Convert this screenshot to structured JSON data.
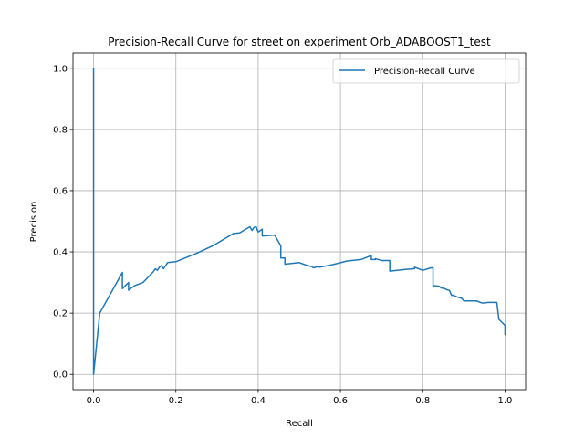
{
  "chart_data": {
    "type": "line",
    "title": "Precision-Recall Curve for street on experiment Orb_ADABOOST1_test",
    "xlabel": "Recall",
    "ylabel": "Precision",
    "xlim": [
      -0.05,
      1.05
    ],
    "ylim": [
      -0.05,
      1.05
    ],
    "xticks": [
      "0.0",
      "0.2",
      "0.4",
      "0.6",
      "0.8",
      "1.0"
    ],
    "yticks": [
      "0.0",
      "0.2",
      "0.4",
      "0.6",
      "0.8",
      "1.0"
    ],
    "grid": true,
    "legend_position": "top-right",
    "series": [
      {
        "name": "Precision-Recall Curve",
        "color": "#1f77b4",
        "x": [
          0.0,
          0.0,
          0.0,
          0.015,
          0.07,
          0.07,
          0.085,
          0.085,
          0.1,
          0.11,
          0.12,
          0.145,
          0.15,
          0.155,
          0.16,
          0.165,
          0.17,
          0.175,
          0.18,
          0.2,
          0.25,
          0.29,
          0.34,
          0.355,
          0.38,
          0.385,
          0.39,
          0.395,
          0.4,
          0.41,
          0.41,
          0.44,
          0.455,
          0.455,
          0.465,
          0.465,
          0.5,
          0.52,
          0.53,
          0.535,
          0.545,
          0.55,
          0.58,
          0.61,
          0.615,
          0.65,
          0.675,
          0.675,
          0.685,
          0.685,
          0.7,
          0.705,
          0.72,
          0.72,
          0.76,
          0.78,
          0.78,
          0.79,
          0.8,
          0.82,
          0.825,
          0.825,
          0.84,
          0.845,
          0.85,
          0.86,
          0.865,
          0.87,
          0.875,
          0.885,
          0.895,
          0.9,
          0.93,
          0.935,
          0.94,
          0.945,
          0.96,
          0.98,
          0.985,
          1.0,
          1.0
        ],
        "y": [
          1.0,
          0.0,
          0.0,
          0.2,
          0.333,
          0.28,
          0.3,
          0.275,
          0.29,
          0.295,
          0.3,
          0.335,
          0.345,
          0.34,
          0.35,
          0.355,
          0.345,
          0.355,
          0.365,
          0.368,
          0.395,
          0.42,
          0.46,
          0.462,
          0.482,
          0.47,
          0.48,
          0.482,
          0.465,
          0.474,
          0.452,
          0.455,
          0.42,
          0.38,
          0.38,
          0.36,
          0.365,
          0.355,
          0.352,
          0.348,
          0.352,
          0.35,
          0.358,
          0.368,
          0.37,
          0.375,
          0.388,
          0.375,
          0.375,
          0.378,
          0.372,
          0.372,
          0.372,
          0.337,
          0.343,
          0.345,
          0.35,
          0.345,
          0.34,
          0.348,
          0.348,
          0.29,
          0.288,
          0.282,
          0.282,
          0.276,
          0.274,
          0.258,
          0.258,
          0.252,
          0.248,
          0.24,
          0.24,
          0.238,
          0.235,
          0.233,
          0.235,
          0.235,
          0.18,
          0.16,
          0.128
        ]
      }
    ]
  }
}
